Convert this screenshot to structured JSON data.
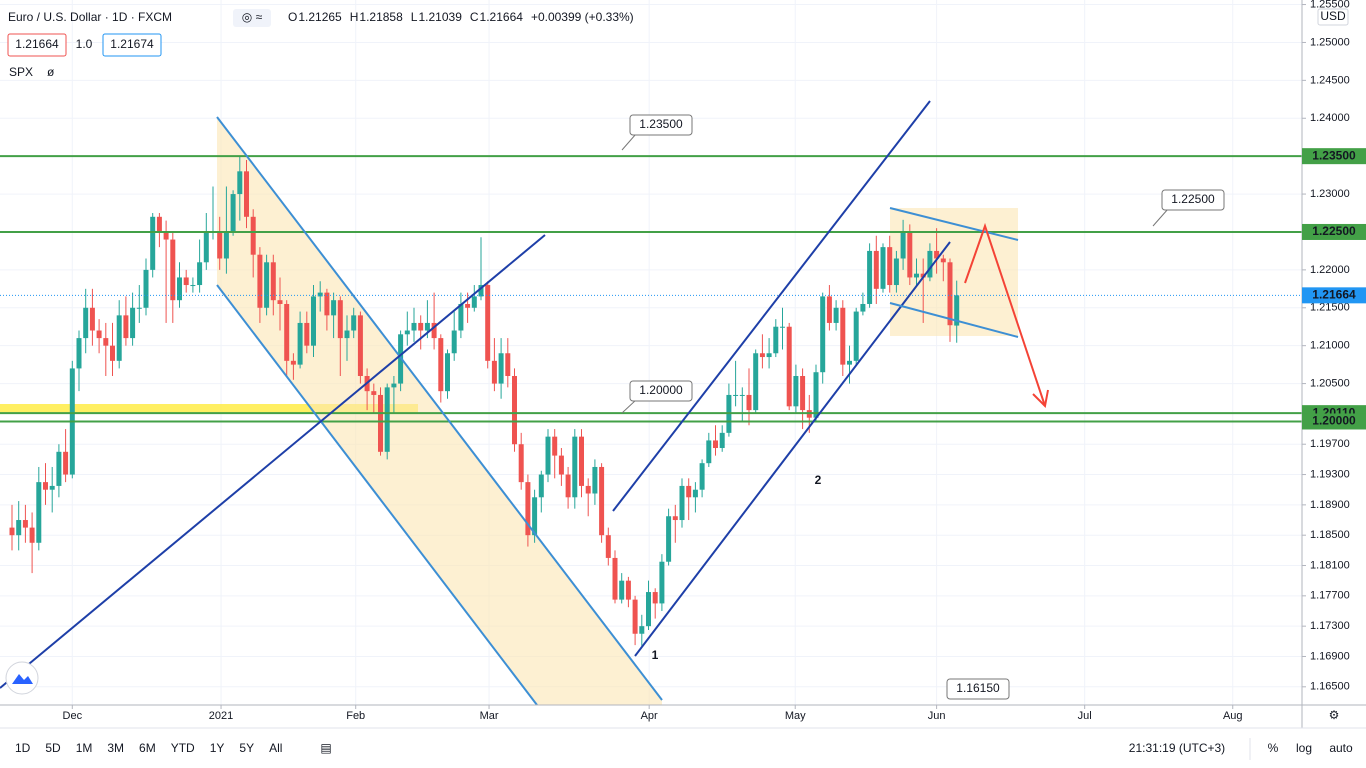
{
  "header": {
    "symbol": "Euro / U.S. Dollar · 1D · FXCM",
    "o_label": "O",
    "h_label": "H",
    "l_label": "L",
    "c_label": "C",
    "change": "+0.00399 (+0.33%)",
    "spread": "1.0",
    "ask": 1.21674,
    "indicator": "SPX"
  },
  "chart_data": {
    "type": "candlestick",
    "up_color": "#26a69a",
    "down_color": "#ef5350",
    "grid": true,
    "currency": "USD",
    "ylim": [
      1.1626,
      1.2556
    ],
    "yticks": [
      {
        "value": 1.255,
        "label": "1.25500"
      },
      {
        "value": 1.25,
        "label": "1.25000"
      },
      {
        "value": 1.245,
        "label": "1.24500"
      },
      {
        "value": 1.24,
        "label": "1.24000"
      },
      {
        "value": 1.23,
        "label": "1.23000"
      },
      {
        "value": 1.22,
        "label": "1.22000"
      },
      {
        "value": 1.215,
        "label": "1.21500"
      },
      {
        "value": 1.21,
        "label": "1.21000"
      },
      {
        "value": 1.205,
        "label": "1.20500"
      },
      {
        "value": 1.197,
        "label": "1.19700"
      },
      {
        "value": 1.193,
        "label": "1.19300"
      },
      {
        "value": 1.189,
        "label": "1.18900"
      },
      {
        "value": 1.185,
        "label": "1.18500"
      },
      {
        "value": 1.181,
        "label": "1.18100"
      },
      {
        "value": 1.177,
        "label": "1.17700"
      },
      {
        "value": 1.173,
        "label": "1.17300"
      },
      {
        "value": 1.169,
        "label": "1.16900"
      },
      {
        "value": 1.165,
        "label": "1.16500"
      }
    ],
    "xticks": [
      {
        "value": 9,
        "label": "Dec"
      },
      {
        "value": 31.2,
        "label": "2021"
      },
      {
        "value": 51.3,
        "label": "Feb"
      },
      {
        "value": 71.2,
        "label": "Mar"
      },
      {
        "value": 95.1,
        "label": "Apr"
      },
      {
        "value": 116.9,
        "label": "May"
      },
      {
        "value": 138,
        "label": "Jun"
      },
      {
        "value": 160.1,
        "label": "Jul"
      },
      {
        "value": 182.2,
        "label": "Aug"
      }
    ],
    "levels": [
      {
        "value": 1.235,
        "label": "1.23500"
      },
      {
        "value": 1.225,
        "label": "1.22500"
      },
      {
        "value": 1.2011,
        "label": "1.20110"
      },
      {
        "value": 1.2,
        "label": "1.20000"
      }
    ],
    "level_color": "#43a047",
    "last_price_color": "#2196f3",
    "callouts": [
      "1.23500",
      "1.22500",
      "1.20000",
      "1.16150"
    ],
    "wave_labels": [
      "1",
      "2"
    ],
    "ohlc": [
      [
        1.186,
        1.189,
        1.183,
        1.185
      ],
      [
        1.185,
        1.1895,
        1.183,
        1.187
      ],
      [
        1.187,
        1.189,
        1.184,
        1.186
      ],
      [
        1.186,
        1.188,
        1.18,
        1.184
      ],
      [
        1.184,
        1.194,
        1.183,
        1.192
      ],
      [
        1.192,
        1.1945,
        1.189,
        1.191
      ],
      [
        1.191,
        1.194,
        1.188,
        1.1915
      ],
      [
        1.1915,
        1.197,
        1.19,
        1.196
      ],
      [
        1.196,
        1.199,
        1.192,
        1.193
      ],
      [
        1.193,
        1.208,
        1.1925,
        1.207
      ],
      [
        1.207,
        1.212,
        1.204,
        1.211
      ],
      [
        1.211,
        1.2175,
        1.209,
        1.215
      ],
      [
        1.215,
        1.2175,
        1.21,
        1.212
      ],
      [
        1.212,
        1.2135,
        1.209,
        1.211
      ],
      [
        1.211,
        1.213,
        1.206,
        1.21
      ],
      [
        1.21,
        1.213,
        1.206,
        1.208
      ],
      [
        1.208,
        1.216,
        1.207,
        1.214
      ],
      [
        1.214,
        1.2165,
        1.21,
        1.211
      ],
      [
        1.211,
        1.217,
        1.21,
        1.215
      ],
      [
        1.215,
        1.218,
        1.213,
        1.215
      ],
      [
        1.215,
        1.2215,
        1.214,
        1.22
      ],
      [
        1.22,
        1.2275,
        1.219,
        1.227
      ],
      [
        1.227,
        1.2275,
        1.223,
        1.225
      ],
      [
        1.225,
        1.2265,
        1.213,
        1.224
      ],
      [
        1.224,
        1.225,
        1.213,
        1.216
      ],
      [
        1.216,
        1.221,
        1.215,
        1.219
      ],
      [
        1.219,
        1.22,
        1.217,
        1.218
      ],
      [
        1.218,
        1.219,
        1.217,
        1.218
      ],
      [
        1.218,
        1.224,
        1.217,
        1.221
      ],
      [
        1.221,
        1.2275,
        1.22,
        1.225
      ],
      [
        1.225,
        1.231,
        1.224,
        1.225
      ],
      [
        1.225,
        1.227,
        1.22,
        1.2215
      ],
      [
        1.2215,
        1.231,
        1.2195,
        1.225
      ],
      [
        1.225,
        1.2305,
        1.2245,
        1.23
      ],
      [
        1.23,
        1.2349,
        1.2265,
        1.233
      ],
      [
        1.233,
        1.2345,
        1.2255,
        1.227
      ],
      [
        1.227,
        1.228,
        1.219,
        1.222
      ],
      [
        1.222,
        1.223,
        1.213,
        1.215
      ],
      [
        1.215,
        1.222,
        1.214,
        1.221
      ],
      [
        1.221,
        1.222,
        1.214,
        1.216
      ],
      [
        1.216,
        1.219,
        1.212,
        1.2155
      ],
      [
        1.2155,
        1.216,
        1.206,
        1.208
      ],
      [
        1.208,
        1.209,
        1.2055,
        1.2075
      ],
      [
        1.2075,
        1.2145,
        1.207,
        1.213
      ],
      [
        1.213,
        1.2145,
        1.209,
        1.21
      ],
      [
        1.21,
        1.218,
        1.2085,
        1.2165
      ],
      [
        1.2165,
        1.2185,
        1.2145,
        1.217
      ],
      [
        1.217,
        1.2175,
        1.212,
        1.214
      ],
      [
        1.214,
        1.217,
        1.211,
        1.216
      ],
      [
        1.216,
        1.2165,
        1.206,
        1.211
      ],
      [
        1.211,
        1.214,
        1.208,
        1.212
      ],
      [
        1.212,
        1.215,
        1.211,
        1.214
      ],
      [
        1.214,
        1.2145,
        1.205,
        1.206
      ],
      [
        1.206,
        1.207,
        1.2015,
        1.204
      ],
      [
        1.204,
        1.205,
        1.201,
        1.2035
      ],
      [
        1.2035,
        1.2045,
        1.1955,
        1.196
      ],
      [
        1.196,
        1.205,
        1.195,
        1.2045
      ],
      [
        1.2045,
        1.206,
        1.201,
        1.205
      ],
      [
        1.205,
        1.212,
        1.204,
        1.2115
      ],
      [
        1.2115,
        1.2145,
        1.21,
        1.212
      ],
      [
        1.212,
        1.215,
        1.2105,
        1.213
      ],
      [
        1.213,
        1.214,
        1.2095,
        1.212
      ],
      [
        1.212,
        1.216,
        1.211,
        1.213
      ],
      [
        1.213,
        1.217,
        1.2095,
        1.211
      ],
      [
        1.211,
        1.2115,
        1.2025,
        1.204
      ],
      [
        1.204,
        1.2095,
        1.203,
        1.209
      ],
      [
        1.209,
        1.2145,
        1.208,
        1.212
      ],
      [
        1.212,
        1.217,
        1.211,
        1.2155
      ],
      [
        1.2155,
        1.217,
        1.213,
        1.215
      ],
      [
        1.215,
        1.218,
        1.2145,
        1.2165
      ],
      [
        1.2165,
        1.2243,
        1.216,
        1.218
      ],
      [
        1.218,
        1.2185,
        1.207,
        1.208
      ],
      [
        1.208,
        1.211,
        1.204,
        1.205
      ],
      [
        1.205,
        1.211,
        1.203,
        1.209
      ],
      [
        1.209,
        1.211,
        1.2045,
        1.206
      ],
      [
        1.206,
        1.207,
        1.196,
        1.197
      ],
      [
        1.197,
        1.1985,
        1.191,
        1.192
      ],
      [
        1.192,
        1.193,
        1.1835,
        1.185
      ],
      [
        1.185,
        1.191,
        1.184,
        1.19
      ],
      [
        1.19,
        1.1935,
        1.188,
        1.193
      ],
      [
        1.193,
        1.199,
        1.192,
        1.198
      ],
      [
        1.198,
        1.199,
        1.1925,
        1.1955
      ],
      [
        1.1955,
        1.1965,
        1.1915,
        1.193
      ],
      [
        1.193,
        1.194,
        1.1885,
        1.19
      ],
      [
        1.19,
        1.199,
        1.1885,
        1.198
      ],
      [
        1.198,
        1.199,
        1.19,
        1.1915
      ],
      [
        1.1915,
        1.1925,
        1.1875,
        1.1905
      ],
      [
        1.1905,
        1.195,
        1.189,
        1.194
      ],
      [
        1.194,
        1.1945,
        1.184,
        1.185
      ],
      [
        1.185,
        1.186,
        1.181,
        1.182
      ],
      [
        1.182,
        1.183,
        1.176,
        1.1765
      ],
      [
        1.1765,
        1.18,
        1.176,
        1.179
      ],
      [
        1.179,
        1.1795,
        1.1755,
        1.1765
      ],
      [
        1.1765,
        1.177,
        1.1705,
        1.172
      ],
      [
        1.172,
        1.1745,
        1.1704,
        1.173
      ],
      [
        1.173,
        1.179,
        1.1725,
        1.1775
      ],
      [
        1.1775,
        1.178,
        1.174,
        1.176
      ],
      [
        1.176,
        1.1825,
        1.175,
        1.1815
      ],
      [
        1.1815,
        1.1885,
        1.181,
        1.1875
      ],
      [
        1.1875,
        1.189,
        1.184,
        1.187
      ],
      [
        1.187,
        1.1925,
        1.186,
        1.1915
      ],
      [
        1.1915,
        1.1925,
        1.187,
        1.19
      ],
      [
        1.19,
        1.192,
        1.188,
        1.191
      ],
      [
        1.191,
        1.195,
        1.19,
        1.1945
      ],
      [
        1.1945,
        1.1985,
        1.194,
        1.1975
      ],
      [
        1.1975,
        1.1995,
        1.1955,
        1.1965
      ],
      [
        1.1965,
        1.1995,
        1.196,
        1.1985
      ],
      [
        1.1985,
        1.205,
        1.198,
        1.2035
      ],
      [
        1.2035,
        1.208,
        1.202,
        1.2035
      ],
      [
        1.2035,
        1.2045,
        1.2,
        1.2035
      ],
      [
        1.2035,
        1.207,
        1.1995,
        1.2015
      ],
      [
        1.2015,
        1.2095,
        1.201,
        1.209
      ],
      [
        1.209,
        1.2115,
        1.207,
        1.2085
      ],
      [
        1.2085,
        1.211,
        1.207,
        1.209
      ],
      [
        1.209,
        1.2135,
        1.2085,
        1.2125
      ],
      [
        1.2125,
        1.215,
        1.2095,
        1.2125
      ],
      [
        1.2125,
        1.213,
        1.2015,
        1.202
      ],
      [
        1.202,
        1.2075,
        1.201,
        1.206
      ],
      [
        1.206,
        1.207,
        1.199,
        1.2015
      ],
      [
        1.2015,
        1.2035,
        1.1985,
        1.2005
      ],
      [
        1.2005,
        1.2075,
        1.2,
        1.2065
      ],
      [
        1.2065,
        1.217,
        1.205,
        1.2165
      ],
      [
        1.2165,
        1.218,
        1.212,
        1.213
      ],
      [
        1.213,
        1.216,
        1.212,
        1.215
      ],
      [
        1.215,
        1.216,
        1.206,
        1.2075
      ],
      [
        1.2075,
        1.21,
        1.205,
        1.208
      ],
      [
        1.208,
        1.215,
        1.2075,
        1.2145
      ],
      [
        1.2145,
        1.217,
        1.214,
        1.2155
      ],
      [
        1.2155,
        1.2235,
        1.215,
        1.2225
      ],
      [
        1.2225,
        1.2245,
        1.2155,
        1.2175
      ],
      [
        1.2175,
        1.2235,
        1.217,
        1.223
      ],
      [
        1.223,
        1.2245,
        1.217,
        1.218
      ],
      [
        1.218,
        1.2225,
        1.217,
        1.2215
      ],
      [
        1.2215,
        1.2266,
        1.22,
        1.225
      ],
      [
        1.225,
        1.226,
        1.218,
        1.219
      ],
      [
        1.219,
        1.2215,
        1.218,
        1.2195
      ],
      [
        1.2195,
        1.2215,
        1.213,
        1.219
      ],
      [
        1.219,
        1.2235,
        1.2185,
        1.2225
      ],
      [
        1.2225,
        1.2255,
        1.2195,
        1.2215
      ],
      [
        1.2215,
        1.222,
        1.2185,
        1.221
      ],
      [
        1.221,
        1.2215,
        1.2105,
        1.2127
      ],
      [
        1.21265,
        1.21858,
        1.21039,
        1.21664
      ]
    ]
  },
  "toolbar": {
    "ranges": [
      "1D",
      "5D",
      "1M",
      "3M",
      "6M",
      "YTD",
      "1Y",
      "5Y",
      "All"
    ],
    "time": "21:31:19 (UTC+3)",
    "percent": "%",
    "log": "log",
    "auto": "auto"
  }
}
